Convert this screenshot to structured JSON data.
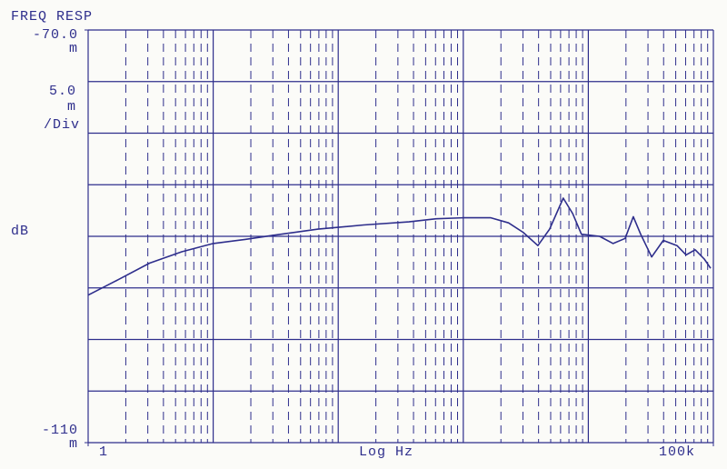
{
  "chart_data": {
    "type": "line",
    "title": "FREQ RESP",
    "x_label": "Log Hz",
    "y_label": "dB",
    "y_unit_prefix": "m",
    "y_div": {
      "value": 5,
      "label": "5.0"
    },
    "y_div_unit": "/Div",
    "x_scale": "log",
    "grid": true,
    "color": "#2e2e8c",
    "xlim": [
      1,
      100000
    ],
    "xticks": [
      1,
      {
        "value": 100000,
        "label": "100k"
      }
    ],
    "ylim": [
      -110,
      -70
    ],
    "yticks": [
      {
        "value": -70,
        "label": "-70.0"
      },
      -110
    ],
    "x": [
      1,
      1.74,
      3.1,
      5.6,
      10,
      18,
      30,
      69,
      160,
      367,
      607,
      1000,
      1660,
      2300,
      3000,
      3950,
      4900,
      6300,
      7500,
      8800,
      12300,
      15800,
      19700,
      22900,
      26200,
      32100,
      39800,
      51200,
      60500,
      71600,
      84600,
      95100
    ],
    "series": [
      {
        "values": [
          -95.7,
          -94.2,
          -92.6,
          -91.5,
          -90.7,
          -90.3,
          -89.9,
          -89.3,
          -88.9,
          -88.6,
          -88.3,
          -88.2,
          -88.2,
          -88.7,
          -89.6,
          -90.9,
          -89.3,
          -86.3,
          -87.8,
          -89.8,
          -90.0,
          -90.7,
          -90.2,
          -88.1,
          -89.8,
          -92.0,
          -90.4,
          -90.9,
          -91.8,
          -91.3,
          -92.2,
          -93.1
        ]
      }
    ]
  }
}
